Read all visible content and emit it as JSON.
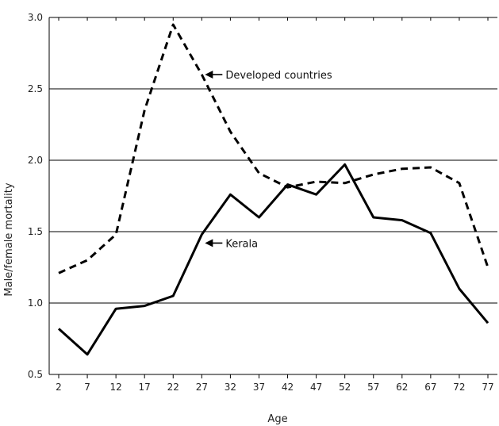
{
  "chart_data": {
    "type": "line",
    "title": "",
    "xlabel": "Age",
    "ylabel": "Male/female mortality",
    "x": [
      2,
      7,
      12,
      17,
      22,
      27,
      32,
      37,
      42,
      47,
      52,
      57,
      62,
      67,
      72,
      77
    ],
    "x_tick_labels": [
      "2",
      "7",
      "12",
      "17",
      "22",
      "27",
      "32",
      "37",
      "42",
      "47",
      "52",
      "57",
      "62",
      "67",
      "72",
      "77"
    ],
    "y_tick_labels": [
      "0.5",
      "1.0",
      "1.5",
      "2.0",
      "2.5",
      "3.0"
    ],
    "y_ticks": [
      0.5,
      1.0,
      1.5,
      2.0,
      2.5,
      3.0
    ],
    "ylim": [
      0.5,
      3.0
    ],
    "xlim": [
      2,
      77
    ],
    "grid": "horizontal",
    "series": [
      {
        "name": "Developed countries",
        "style": "dashed",
        "values": [
          1.21,
          1.3,
          1.48,
          2.35,
          2.95,
          2.6,
          2.2,
          1.91,
          1.81,
          1.85,
          1.84,
          1.9,
          1.94,
          1.95,
          1.84,
          1.25
        ]
      },
      {
        "name": "Kerala",
        "style": "solid",
        "values": [
          0.82,
          0.64,
          0.96,
          0.98,
          1.05,
          1.48,
          1.76,
          1.6,
          1.83,
          1.76,
          1.97,
          1.6,
          1.58,
          1.49,
          1.1,
          0.86
        ]
      }
    ],
    "annotations": [
      {
        "text": "Developed countries",
        "series": "Developed countries",
        "at_x": 27,
        "at_y": 2.6
      },
      {
        "text": "Kerala",
        "series": "Kerala",
        "at_x": 27,
        "at_y": 1.42
      }
    ],
    "line_color": "#000000"
  }
}
